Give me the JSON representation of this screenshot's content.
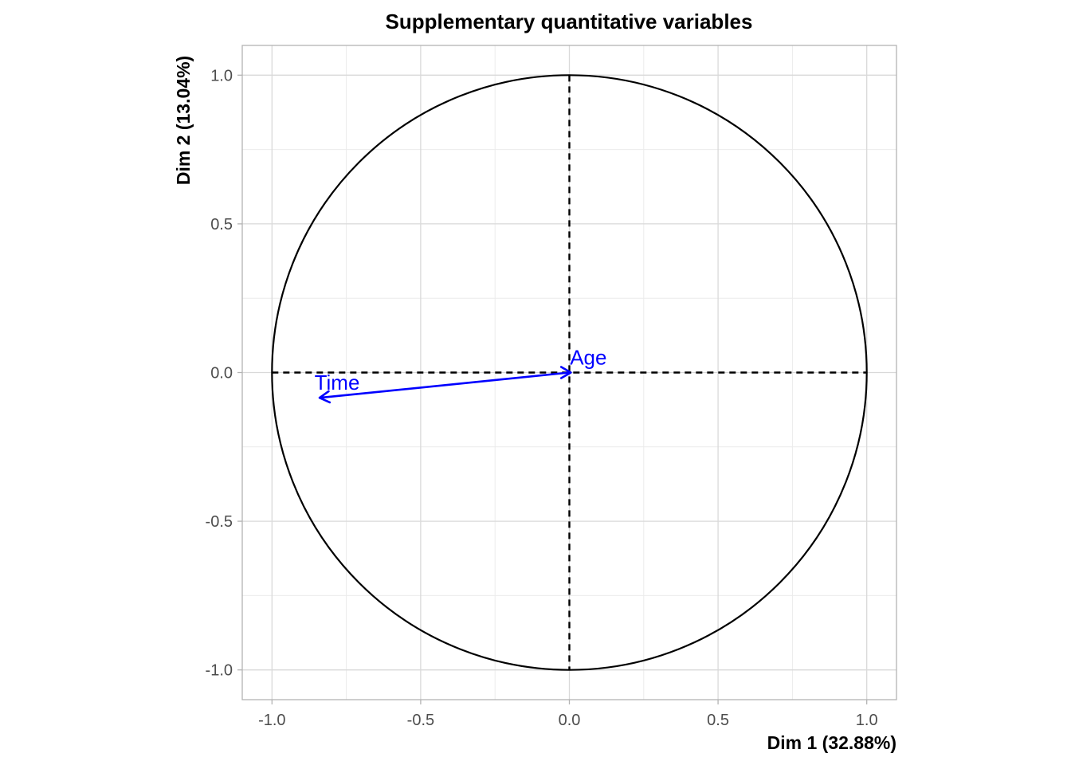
{
  "chart_data": {
    "type": "scatter",
    "title": "Supplementary quantitative variables",
    "xlabel": "Dim 1 (32.88%)",
    "ylabel": "Dim 2 (13.04%)",
    "xlim": [
      -1.1,
      1.1
    ],
    "ylim": [
      -1.1,
      1.1
    ],
    "grid": true,
    "correlation_circle": {
      "radius": 1.0,
      "color": "#000000"
    },
    "reference_lines": {
      "style": "dashed",
      "color": "#000000"
    },
    "x_ticks": [
      {
        "value": -1.0,
        "label": "-1.0"
      },
      {
        "value": -0.5,
        "label": "-0.5"
      },
      {
        "value": 0.0,
        "label": "0.0"
      },
      {
        "value": 0.5,
        "label": "0.5"
      },
      {
        "value": 1.0,
        "label": "1.0"
      }
    ],
    "y_ticks": [
      {
        "value": 1.0,
        "label": "1.0"
      },
      {
        "value": 0.5,
        "label": "0.5"
      },
      {
        "value": 0.0,
        "label": "0.0"
      },
      {
        "value": -0.5,
        "label": "-0.5"
      },
      {
        "value": -1.0,
        "label": "-1.0"
      }
    ],
    "variables": [
      {
        "name": "Time",
        "x": -0.84,
        "y": -0.085,
        "color": "#0000ff"
      },
      {
        "name": "Age",
        "x": 0.005,
        "y": 0.0,
        "color": "#0000ff"
      }
    ]
  }
}
